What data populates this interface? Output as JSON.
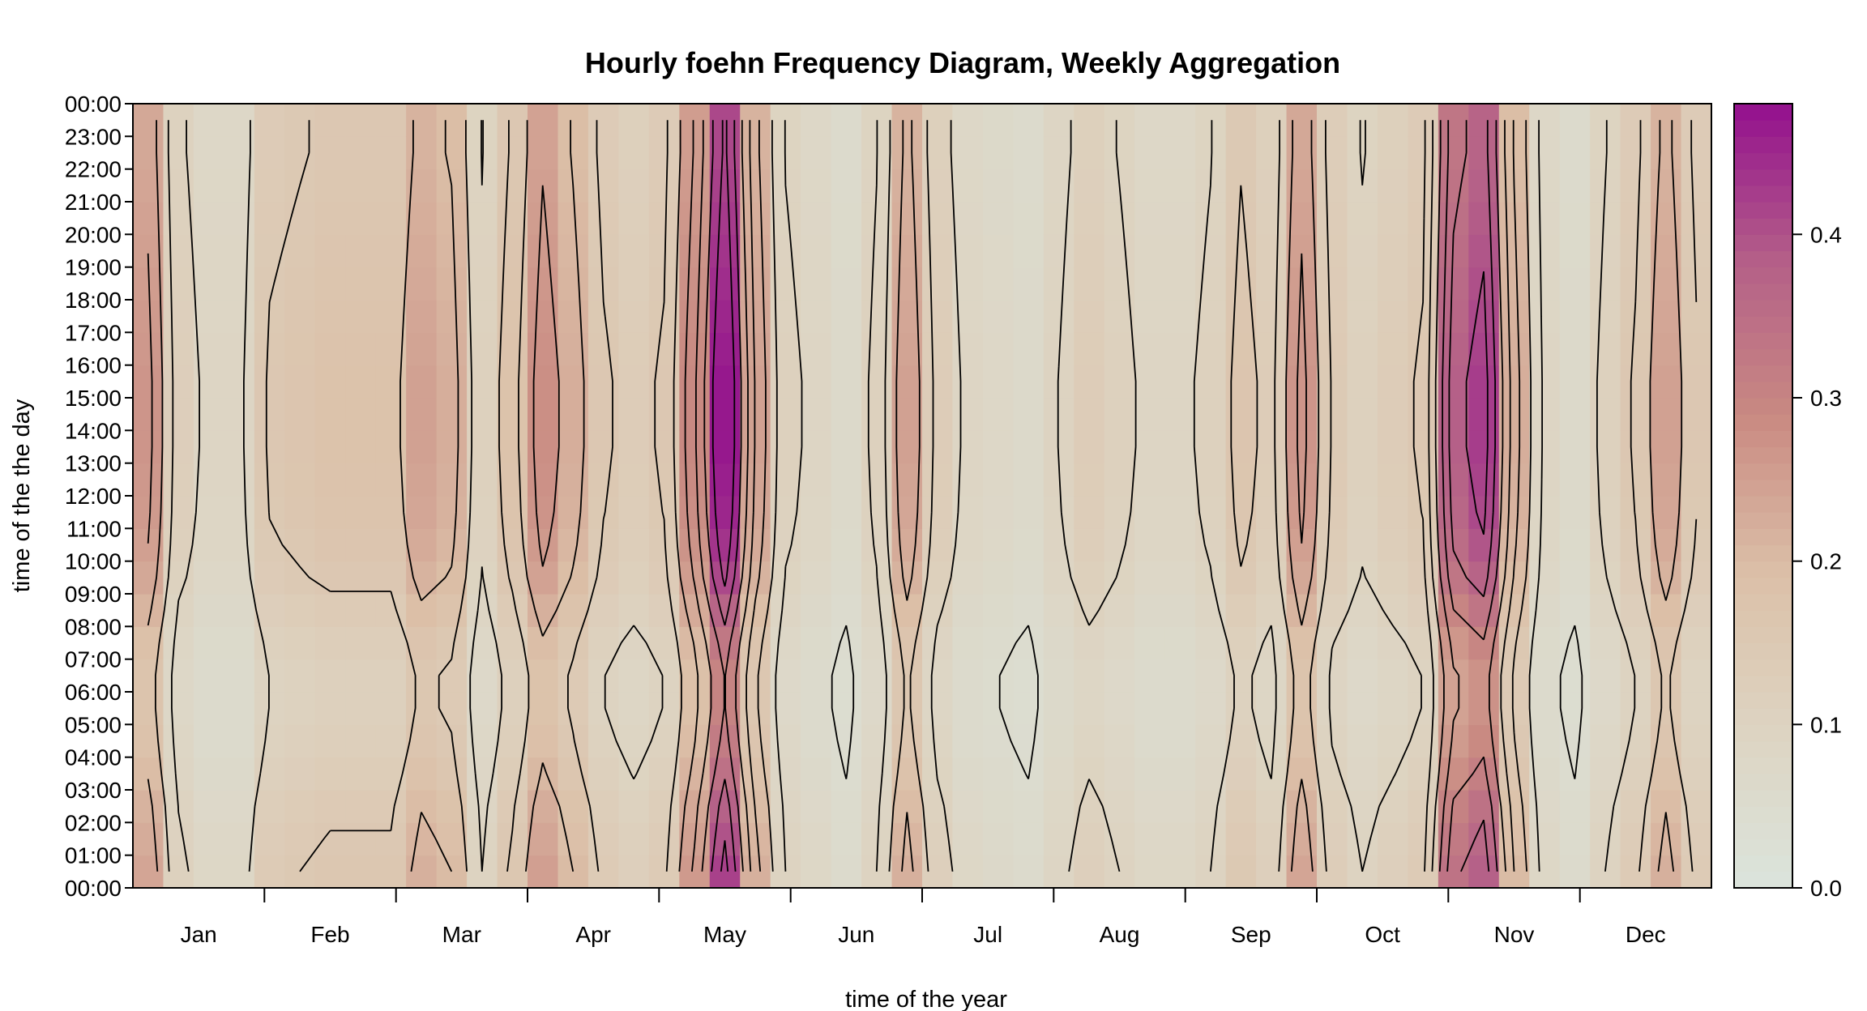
{
  "chart_data": {
    "type": "heatmap",
    "title": "Hourly foehn Frequency Diagram, Weekly Aggregation",
    "xlabel": "time of the year",
    "ylabel": "time of the the day",
    "x_ticks": [
      "Jan",
      "Feb",
      "Mar",
      "Apr",
      "May",
      "Jun",
      "Jul",
      "Aug",
      "Sep",
      "Oct",
      "Nov",
      "Dec"
    ],
    "y_ticks": [
      "00:00",
      "01:00",
      "02:00",
      "03:00",
      "04:00",
      "05:00",
      "06:00",
      "07:00",
      "08:00",
      "09:00",
      "10:00",
      "11:00",
      "12:00",
      "13:00",
      "14:00",
      "15:00",
      "16:00",
      "17:00",
      "18:00",
      "19:00",
      "20:00",
      "21:00",
      "22:00",
      "23:00",
      "00:00"
    ],
    "colorbar": {
      "ticks": [
        "0.0",
        "0.1",
        "0.2",
        "0.3",
        "0.4"
      ],
      "tick_values": [
        0.0,
        0.1,
        0.2,
        0.3,
        0.4
      ],
      "range": [
        0.0,
        0.48
      ],
      "palette": [
        "#dbe4dc",
        "#ddd4c2",
        "#dcc0a8",
        "#c98a82",
        "#b45f88",
        "#93108e"
      ]
    },
    "grid_weeks": 52,
    "grid_hours": 24,
    "weekly_profile": [
      0.24,
      0.11,
      0.08,
      0.08,
      0.14,
      0.15,
      0.16,
      0.16,
      0.16,
      0.22,
      0.2,
      0.1,
      0.16,
      0.25,
      0.2,
      0.14,
      0.12,
      0.14,
      0.26,
      0.42,
      0.22,
      0.1,
      0.08,
      0.06,
      0.1,
      0.22,
      0.12,
      0.08,
      0.07,
      0.06,
      0.09,
      0.12,
      0.1,
      0.08,
      0.08,
      0.1,
      0.15,
      0.12,
      0.24,
      0.13,
      0.1,
      0.12,
      0.14,
      0.34,
      0.38,
      0.2,
      0.08,
      0.06,
      0.1,
      0.14,
      0.22,
      0.14
    ],
    "hourly_profile": [
      1.0,
      0.95,
      0.9,
      0.82,
      0.76,
      0.72,
      0.72,
      0.78,
      0.88,
      0.98,
      1.04,
      1.08,
      1.1,
      1.12,
      1.12,
      1.12,
      1.1,
      1.08,
      1.06,
      1.04,
      1.02,
      1.0,
      0.98,
      0.98
    ]
  }
}
